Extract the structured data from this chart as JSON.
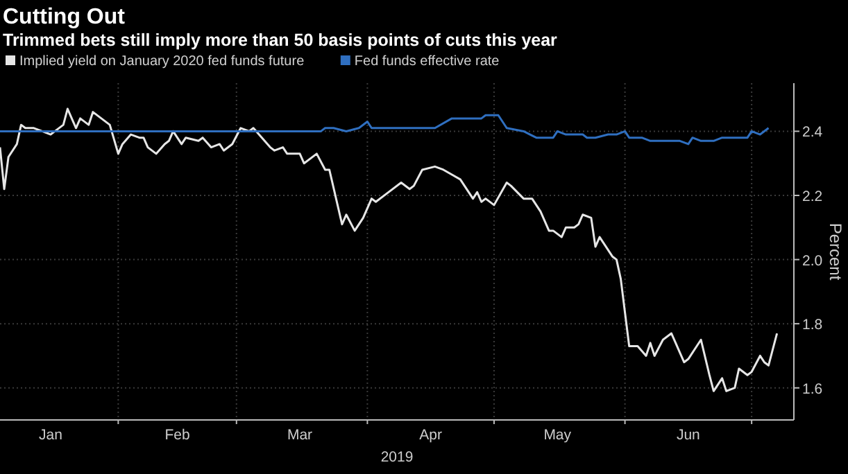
{
  "chart_data": {
    "type": "line",
    "title": "Cutting Out",
    "subtitle": "Trimmed bets still imply more than 50 basis points of cuts this year",
    "xlabel": "2019",
    "ylabel": "Percent",
    "legend": "top left",
    "grid": true,
    "xlim": [
      "2019-01-04",
      "2019-07-11"
    ],
    "xticks": [
      {
        "value": "2019-01-16",
        "label": "Jan"
      },
      {
        "value": "2019-02-01",
        "label": null
      },
      {
        "value": "2019-02-15",
        "label": "Feb"
      },
      {
        "value": "2019-03-01",
        "label": null
      },
      {
        "value": "2019-03-16",
        "label": "Mar"
      },
      {
        "value": "2019-04-01",
        "label": null
      },
      {
        "value": "2019-04-16",
        "label": "Apr"
      },
      {
        "value": "2019-05-01",
        "label": null
      },
      {
        "value": "2019-05-16",
        "label": "May"
      },
      {
        "value": "2019-06-01",
        "label": null
      },
      {
        "value": "2019-06-16",
        "label": "Jun"
      },
      {
        "value": "2019-07-01",
        "label": null
      }
    ],
    "ylim": [
      1.5,
      2.55
    ],
    "yticks": [
      1.6,
      1.8,
      {
        "value": 2,
        "label": "2.0"
      },
      2.2,
      2.4
    ],
    "series": [
      {
        "name": "Implied yield on January 2020 fed funds future",
        "color": "#e6e6e6",
        "x": [
          "2019-01-04",
          "2019-01-05",
          "2019-01-06",
          "2019-01-08",
          "2019-01-09",
          "2019-01-10",
          "2019-01-12",
          "2019-01-14",
          "2019-01-16",
          "2019-01-17",
          "2019-01-19",
          "2019-01-20",
          "2019-01-22",
          "2019-01-23",
          "2019-01-25",
          "2019-01-26",
          "2019-01-28",
          "2019-01-30",
          "2019-02-01",
          "2019-02-02",
          "2019-02-04",
          "2019-02-06",
          "2019-02-07",
          "2019-02-08",
          "2019-02-10",
          "2019-02-12",
          "2019-02-13",
          "2019-02-14",
          "2019-02-16",
          "2019-02-17",
          "2019-02-20",
          "2019-02-21",
          "2019-02-23",
          "2019-02-25",
          "2019-02-26",
          "2019-02-28",
          "2019-03-02",
          "2019-03-04",
          "2019-03-05",
          "2019-03-09",
          "2019-03-10",
          "2019-03-12",
          "2019-03-13",
          "2019-03-16",
          "2019-03-17",
          "2019-03-20",
          "2019-03-22",
          "2019-03-23",
          "2019-03-26",
          "2019-03-27",
          "2019-03-29",
          "2019-03-31",
          "2019-04-02",
          "2019-04-03",
          "2019-04-06",
          "2019-04-09",
          "2019-04-11",
          "2019-04-12",
          "2019-04-14",
          "2019-04-17",
          "2019-04-19",
          "2019-04-23",
          "2019-04-26",
          "2019-04-27",
          "2019-04-28",
          "2019-04-29",
          "2019-05-01",
          "2019-05-04",
          "2019-05-05",
          "2019-05-08",
          "2019-05-10",
          "2019-05-12",
          "2019-05-14",
          "2019-05-15",
          "2019-05-17",
          "2019-05-18",
          "2019-05-20",
          "2019-05-21",
          "2019-05-22",
          "2019-05-24",
          "2019-05-25",
          "2019-05-26",
          "2019-05-29",
          "2019-05-30",
          "2019-05-31",
          "2019-06-02",
          "2019-06-04",
          "2019-06-06",
          "2019-06-07",
          "2019-06-08",
          "2019-06-10",
          "2019-06-12",
          "2019-06-13",
          "2019-06-15",
          "2019-06-16",
          "2019-06-18",
          "2019-06-19",
          "2019-06-21",
          "2019-06-22",
          "2019-06-24",
          "2019-06-25",
          "2019-06-27",
          "2019-06-28",
          "2019-06-30",
          "2019-07-01",
          "2019-07-03",
          "2019-07-04",
          "2019-07-05",
          "2019-07-07"
        ],
        "values": [
          2.35,
          2.22,
          2.32,
          2.36,
          2.42,
          2.41,
          2.41,
          2.4,
          2.39,
          2.4,
          2.42,
          2.47,
          2.41,
          2.44,
          2.42,
          2.46,
          2.44,
          2.42,
          2.33,
          2.36,
          2.39,
          2.38,
          2.38,
          2.35,
          2.33,
          2.36,
          2.37,
          2.4,
          2.36,
          2.38,
          2.37,
          2.38,
          2.35,
          2.36,
          2.34,
          2.36,
          2.41,
          2.4,
          2.41,
          2.35,
          2.34,
          2.35,
          2.33,
          2.33,
          2.3,
          2.33,
          2.28,
          2.28,
          2.11,
          2.14,
          2.09,
          2.13,
          2.19,
          2.18,
          2.21,
          2.24,
          2.22,
          2.23,
          2.28,
          2.29,
          2.28,
          2.25,
          2.19,
          2.21,
          2.18,
          2.19,
          2.17,
          2.24,
          2.23,
          2.19,
          2.19,
          2.15,
          2.09,
          2.09,
          2.07,
          2.1,
          2.1,
          2.11,
          2.14,
          2.13,
          2.04,
          2.07,
          2.01,
          2.0,
          1.94,
          1.73,
          1.73,
          1.7,
          1.74,
          1.7,
          1.75,
          1.77,
          1.74,
          1.68,
          1.69,
          1.73,
          1.75,
          1.64,
          1.59,
          1.63,
          1.59,
          1.6,
          1.66,
          1.64,
          1.65,
          1.7,
          1.68,
          1.67,
          1.77
        ]
      },
      {
        "name": "Fed funds effective rate",
        "color": "#2f6fc0",
        "x": [
          "2019-01-04",
          "2019-03-21",
          "2019-03-22",
          "2019-03-24",
          "2019-03-27",
          "2019-03-30",
          "2019-04-01",
          "2019-04-02",
          "2019-04-17",
          "2019-04-21",
          "2019-04-28",
          "2019-04-29",
          "2019-05-02",
          "2019-05-04",
          "2019-05-08",
          "2019-05-11",
          "2019-05-15",
          "2019-05-16",
          "2019-05-18",
          "2019-05-22",
          "2019-05-23",
          "2019-05-25",
          "2019-05-28",
          "2019-05-30",
          "2019-06-01",
          "2019-06-02",
          "2019-06-05",
          "2019-06-07",
          "2019-06-14",
          "2019-06-16",
          "2019-06-17",
          "2019-06-19",
          "2019-06-22",
          "2019-06-24",
          "2019-06-30",
          "2019-07-01",
          "2019-07-03",
          "2019-07-05"
        ],
        "values": [
          2.4,
          2.4,
          2.41,
          2.41,
          2.4,
          2.41,
          2.43,
          2.41,
          2.41,
          2.44,
          2.44,
          2.45,
          2.45,
          2.41,
          2.4,
          2.38,
          2.38,
          2.4,
          2.39,
          2.39,
          2.38,
          2.38,
          2.39,
          2.39,
          2.4,
          2.38,
          2.38,
          2.37,
          2.37,
          2.36,
          2.38,
          2.37,
          2.37,
          2.38,
          2.38,
          2.4,
          2.39,
          2.41
        ]
      }
    ]
  }
}
